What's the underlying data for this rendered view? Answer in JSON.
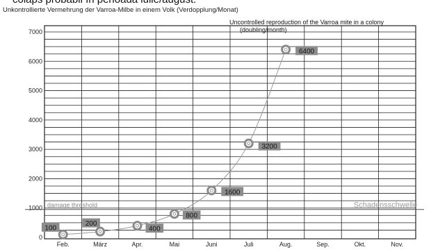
{
  "top_caption": "colaps probabil în perioada iulie/august.",
  "chart_data": {
    "type": "line",
    "title": "Unkontrollierte Vermehrung der Varroa-Milbe in einem Volk (Verdopplung/Monat)",
    "subtitle": "Uncontrolled reproduction of the Varroa mite in a colony (doubling/month)",
    "categories": [
      "Feb.",
      "März",
      "Apr.",
      "Mai",
      "Juni",
      "Juli",
      "Aug.",
      "Sep.",
      "Okt.",
      "Nov."
    ],
    "series": [
      {
        "values": [
          100,
          200,
          400,
          800,
          1600,
          3200,
          6400,
          null,
          null,
          null
        ]
      }
    ],
    "data_labels": [
      "100",
      "200",
      "400",
      "800",
      "1600",
      "3200",
      "6400"
    ],
    "yticks": [
      0,
      1000,
      2000,
      3000,
      4000,
      5000,
      6000,
      7000
    ],
    "ylim": [
      0,
      7300
    ],
    "threshold": {
      "value": 1000,
      "label_left": "damage threshold",
      "label_right": "Schadensschwelle"
    },
    "grid": true,
    "colors": {
      "line": "#999999",
      "grid": "#222222",
      "label_bg": "#8c8c8c",
      "threshold": "#555555"
    }
  }
}
